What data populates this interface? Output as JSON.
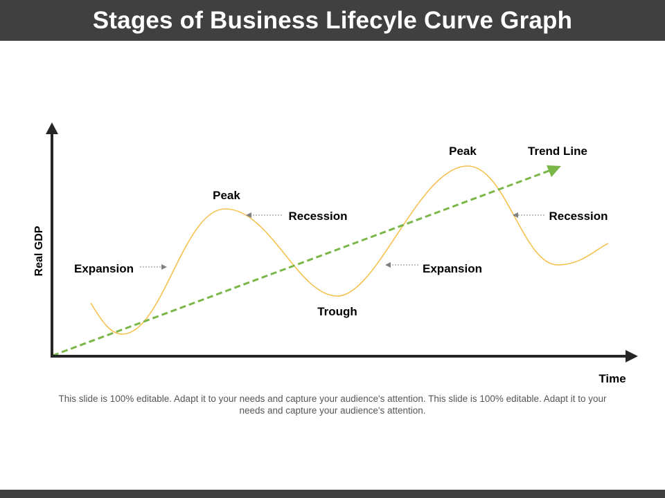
{
  "title": "Stages of Business Lifecyle Curve Graph",
  "axes": {
    "y_label": "Real GDP",
    "x_label": "Time"
  },
  "labels": {
    "peak_1": "Peak",
    "peak_2": "Peak",
    "trend_line": "Trend Line",
    "recession_1": "Recession",
    "recession_2": "Recession",
    "expansion_1": "Expansion",
    "expansion_2": "Expansion",
    "trough": "Trough"
  },
  "caption": "This slide is 100% editable. Adapt it to your needs and capture your audience's attention. This slide is 100% editable. Adapt it to your needs and capture your audience's attention.",
  "colors": {
    "header": "#404040",
    "curve": "#F5C150",
    "trend": "#7AB648",
    "axis": "#262626",
    "pointer": "#808080"
  }
}
